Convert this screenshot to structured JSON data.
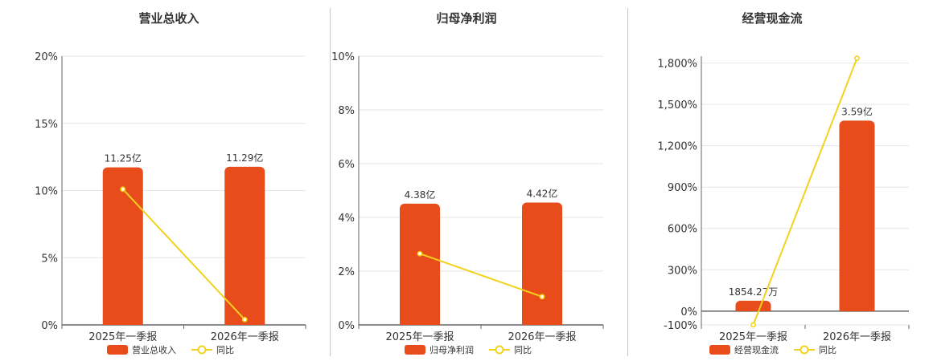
{
  "colors": {
    "bar": "#e84c1a",
    "line": "#f2d21c",
    "grid": "#e3e6ee",
    "axis": "#666666"
  },
  "legend": {
    "yoy_label": "同比"
  },
  "chart_data": [
    {
      "type": "bar",
      "title": "营业总收入",
      "categories": [
        "2025年一季报",
        "2026年一季报"
      ],
      "bar_series": {
        "name": "营业总收入",
        "values": [
          11.25,
          11.29
        ],
        "labels": [
          "11.25亿",
          "11.29亿"
        ]
      },
      "line_series": {
        "name": "同比",
        "values": [
          10.1,
          0.4
        ]
      },
      "ylim": [
        0,
        20
      ],
      "yticks": [
        0,
        5,
        10,
        15,
        20
      ],
      "ytick_labels": [
        "0%",
        "5%",
        "10%",
        "15%",
        "20%"
      ]
    },
    {
      "type": "bar",
      "title": "归母净利润",
      "categories": [
        "2025年一季报",
        "2026年一季报"
      ],
      "bar_series": {
        "name": "归母净利润",
        "values": [
          4.38,
          4.42
        ],
        "labels": [
          "4.38亿",
          "4.42亿"
        ]
      },
      "line_series": {
        "name": "同比",
        "values": [
          2.65,
          1.05
        ]
      },
      "ylim": [
        0,
        10
      ],
      "yticks": [
        0,
        2,
        4,
        6,
        8,
        10
      ],
      "ytick_labels": [
        "0%",
        "2%",
        "4%",
        "6%",
        "8%",
        "10%"
      ]
    },
    {
      "type": "bar",
      "title": "经营现金流",
      "categories": [
        "2025年一季报",
        "2026年一季报"
      ],
      "bar_series": {
        "name": "经营现金流",
        "values": [
          0.1854,
          3.59
        ],
        "labels": [
          "1854.27万",
          "3.59亿"
        ]
      },
      "line_series": {
        "name": "同比",
        "values": [
          -100,
          1835
        ]
      },
      "ylim": [
        -100,
        1850
      ],
      "yticks": [
        -100,
        0,
        300,
        600,
        900,
        1200,
        1500,
        1800
      ],
      "ytick_labels": [
        "-100%",
        "0%",
        "300%",
        "600%",
        "900%",
        "1,200%",
        "1,500%",
        "1,800%"
      ]
    }
  ]
}
